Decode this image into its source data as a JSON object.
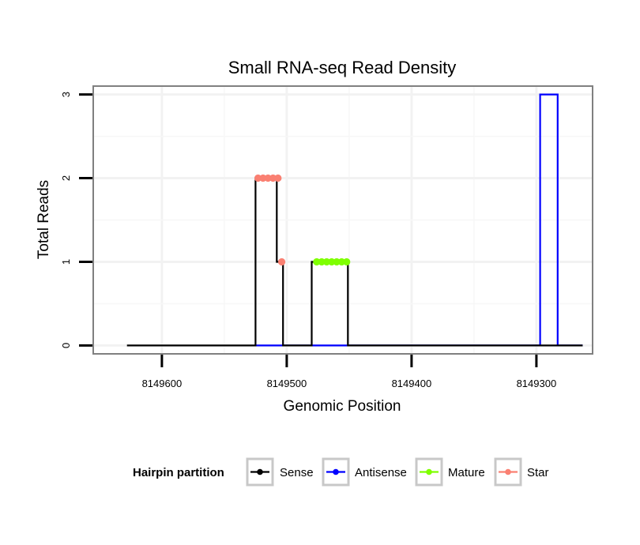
{
  "chart_data": {
    "type": "line",
    "title": "Small RNA-seq Read Density",
    "xlabel": "Genomic Position",
    "ylabel": "Total Reads",
    "x_reversed": true,
    "xlim": [
      8149655,
      8149255
    ],
    "ylim": [
      -0.1,
      3.1
    ],
    "x_ticks": [
      8149600,
      8149500,
      8149400,
      8149300
    ],
    "x_tick_labels": [
      "8149600",
      "8149500",
      "8149400",
      "8149300"
    ],
    "y_ticks": [
      0,
      1,
      2,
      3
    ],
    "y_tick_labels": [
      "0",
      "1",
      "2",
      "3"
    ],
    "grid": true,
    "legend": {
      "title": "Hairpin partition",
      "position": "bottom",
      "entries": [
        {
          "label": "Sense",
          "color": "#000000"
        },
        {
          "label": "Antisense",
          "color": "#0000ff"
        },
        {
          "label": "Mature",
          "color": "#7fff00"
        },
        {
          "label": "Star",
          "color": "#fa8072"
        }
      ]
    },
    "series": [
      {
        "name": "Sense",
        "color": "#000000",
        "kind": "line",
        "x": [
          8149628,
          8149525,
          8149525,
          8149508,
          8149508,
          8149503,
          8149503,
          8149480,
          8149480,
          8149476,
          8149476,
          8149451,
          8149451,
          8149297,
          8149297,
          8149263
        ],
        "y": [
          0,
          0,
          2,
          2,
          1,
          1,
          0,
          0,
          1,
          1,
          1,
          1,
          0,
          0,
          0,
          0
        ]
      },
      {
        "name": "Antisense",
        "color": "#0000ff",
        "kind": "line",
        "x": [
          8149525,
          8149503,
          8149503,
          8149480,
          8149480,
          8149451,
          8149451,
          8149297,
          8149297,
          8149283,
          8149283,
          8149263
        ],
        "y": [
          0,
          0,
          0,
          0,
          0,
          0,
          0,
          0,
          3,
          3,
          0,
          0
        ]
      },
      {
        "name": "Mature",
        "color": "#7fff00",
        "kind": "points",
        "x": [
          8149476,
          8149472,
          8149468,
          8149464,
          8149460,
          8149456,
          8149452
        ],
        "y": [
          1,
          1,
          1,
          1,
          1,
          1,
          1
        ]
      },
      {
        "name": "Star",
        "color": "#fa8072",
        "kind": "points",
        "x": [
          8149523,
          8149519,
          8149515,
          8149511,
          8149507,
          8149504
        ],
        "y": [
          2,
          2,
          2,
          2,
          2,
          1
        ]
      }
    ]
  }
}
